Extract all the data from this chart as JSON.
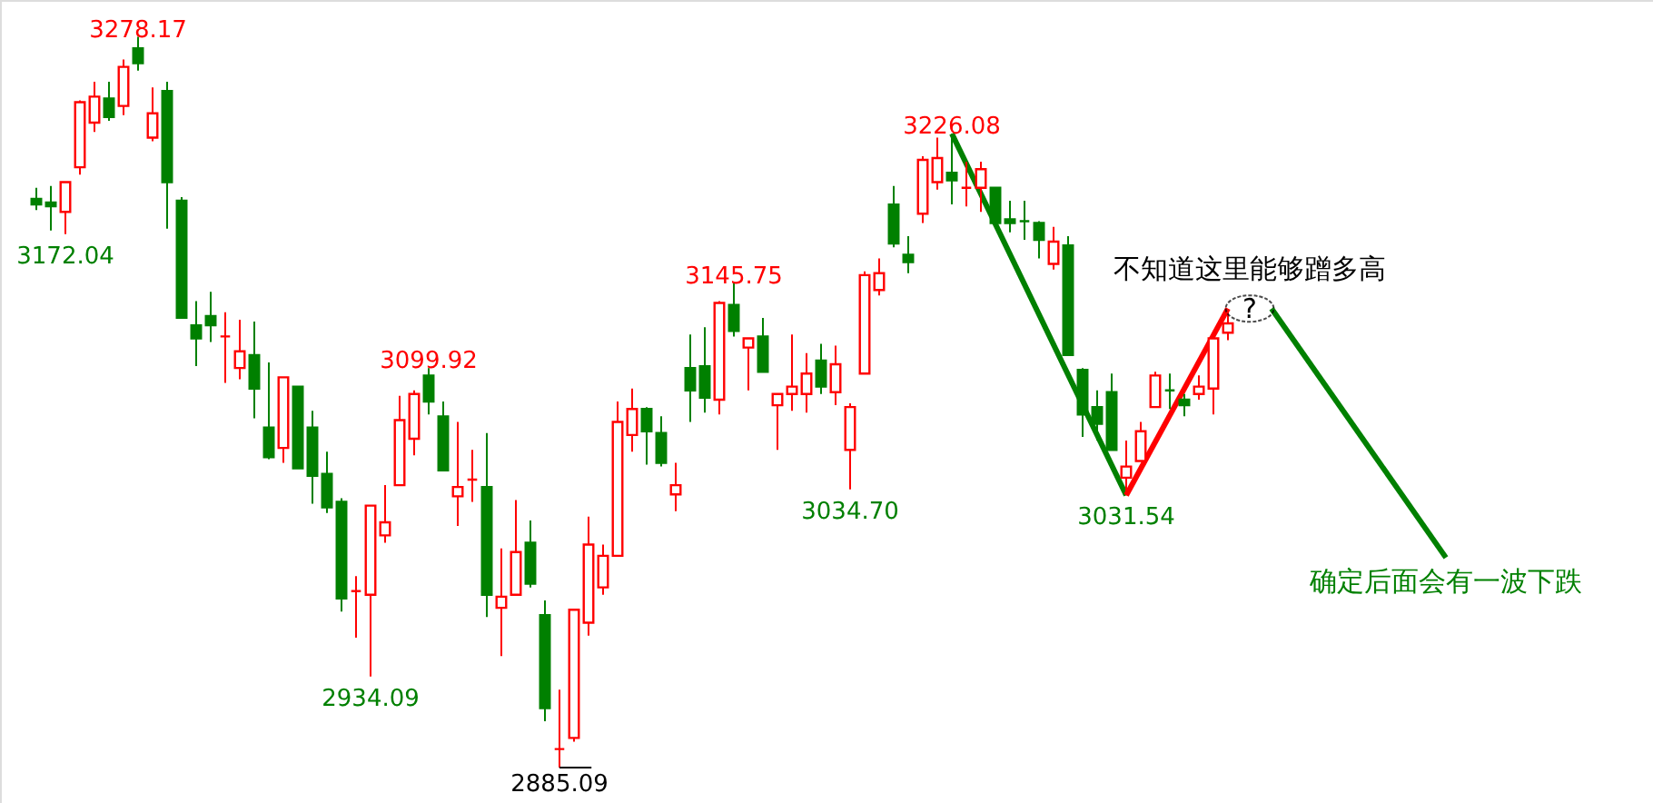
{
  "chart_data": {
    "type": "candlestick",
    "categories": [
      null,
      null,
      null,
      null,
      null,
      null,
      null,
      null,
      null,
      null,
      null,
      null,
      null,
      null,
      null,
      null,
      null,
      null,
      null,
      null,
      null,
      null,
      null,
      null,
      null,
      null,
      null,
      null,
      null,
      null,
      null,
      null,
      null,
      null,
      null,
      null,
      null,
      null,
      null,
      null,
      null,
      null,
      null,
      null,
      null,
      null,
      null,
      null,
      null,
      null,
      null,
      null,
      null,
      null,
      null,
      null,
      null,
      null,
      null,
      null,
      null,
      null,
      null,
      null,
      null,
      null,
      null,
      null,
      null,
      null,
      null,
      null,
      null,
      null,
      null,
      null,
      null,
      null,
      null,
      null,
      null,
      null,
      null,
      null,
      null,
      null,
      null,
      null,
      null,
      null,
      null,
      null,
      null,
      null,
      null,
      null,
      null,
      null
    ],
    "ohlc": [
      [
        3191,
        3197,
        3185,
        3188
      ],
      [
        3189,
        3198,
        3174,
        3187
      ],
      [
        3184,
        3200,
        3172.04,
        3200
      ],
      [
        3208,
        3244,
        3204,
        3243
      ],
      [
        3232,
        3254,
        3227,
        3246
      ],
      [
        3245,
        3254,
        3233,
        3235
      ],
      [
        3241,
        3266,
        3236,
        3262
      ],
      [
        3272,
        3278.17,
        3260,
        3264
      ],
      [
        3224,
        3251,
        3222,
        3237
      ],
      [
        3249,
        3254,
        3175,
        3200
      ],
      [
        3190,
        3192,
        3127,
        3127
      ],
      [
        3123,
        3136,
        3101,
        3116
      ],
      [
        3128,
        3141,
        3114,
        3123
      ],
      [
        3117,
        3130,
        3092,
        3117
      ],
      [
        3100,
        3126,
        3094,
        3109
      ],
      [
        3107,
        3125,
        3073,
        3089
      ],
      [
        3068,
        3103,
        3051,
        3052
      ],
      [
        3057,
        3095,
        3049,
        3095
      ],
      [
        3090,
        3090,
        3046,
        3046
      ],
      [
        3068,
        3077,
        3027,
        3042
      ],
      [
        3043,
        3055,
        3022,
        3025
      ],
      [
        3028,
        3030,
        2969,
        2976
      ],
      [
        2980,
        2988,
        2955,
        2980
      ],
      [
        2978,
        3026,
        2934.09,
        3026
      ],
      [
        3010,
        3037,
        3006,
        3017
      ],
      [
        3037,
        3085,
        3037,
        3072
      ],
      [
        3062,
        3088,
        3053,
        3086
      ],
      [
        3096,
        3099.92,
        3075,
        3082
      ],
      [
        3074,
        3082,
        3045,
        3045
      ],
      [
        3031,
        3071,
        3015,
        3036
      ],
      [
        3040,
        3056,
        3028,
        3040
      ],
      [
        3036,
        3065,
        2966,
        2978
      ],
      [
        2971,
        3003,
        2945,
        2977
      ],
      [
        2978,
        3029,
        2978,
        3001
      ],
      [
        3006,
        3018,
        2982,
        2984
      ],
      [
        2967,
        2975,
        2910,
        2917
      ],
      [
        2895,
        2927,
        2885.09,
        2895
      ],
      [
        2901,
        2970,
        2899,
        2970
      ],
      [
        2963,
        3020,
        2956,
        3005
      ],
      [
        2982,
        3005,
        2978,
        2999
      ],
      [
        2999,
        3082,
        2999,
        3071
      ],
      [
        3064,
        3089,
        3055,
        3078
      ],
      [
        3078,
        3079,
        3048,
        3066
      ],
      [
        3065,
        3074,
        3047,
        3049
      ],
      [
        3032,
        3049,
        3023,
        3037
      ],
      [
        3100,
        3118,
        3071,
        3088
      ],
      [
        3101,
        3122,
        3076,
        3084
      ],
      [
        3083,
        3136,
        3075,
        3135
      ],
      [
        3134,
        3145.75,
        3117,
        3120
      ],
      [
        3111,
        3116,
        3088,
        3116
      ],
      [
        3117,
        3127,
        3098,
        3098
      ],
      [
        3080,
        3086,
        3056,
        3086
      ],
      [
        3086,
        3118,
        3077,
        3090
      ],
      [
        3086,
        3108,
        3076,
        3097
      ],
      [
        3104,
        3113,
        3086,
        3090
      ],
      [
        3087,
        3112,
        3080,
        3102
      ],
      [
        3056,
        3081,
        3034.7,
        3079
      ],
      [
        3097,
        3152,
        3097,
        3150
      ],
      [
        3142,
        3159,
        3139,
        3151
      ],
      [
        3188,
        3198,
        3165,
        3167
      ],
      [
        3161,
        3171,
        3151,
        3157
      ],
      [
        3183,
        3214,
        3178,
        3212
      ],
      [
        3200,
        3224,
        3196,
        3213
      ],
      [
        3205,
        3226.08,
        3188,
        3201
      ],
      [
        3197,
        3211,
        3187,
        3197
      ],
      [
        3197,
        3211,
        3184,
        3207
      ],
      [
        3197,
        3197,
        3175,
        3178
      ],
      [
        3180,
        3190,
        3173,
        3178
      ],
      [
        3179,
        3190,
        3169,
        3179
      ],
      [
        3178,
        3179,
        3159,
        3169
      ],
      [
        3156,
        3176,
        3153,
        3168
      ],
      [
        3166,
        3171,
        3107,
        3107
      ],
      [
        3099,
        3100,
        3063,
        3075
      ],
      [
        3079,
        3088,
        3061,
        3070
      ],
      [
        3087,
        3097,
        3056,
        3056
      ],
      [
        3041,
        3061,
        3031.54,
        3047
      ],
      [
        3050,
        3071,
        3050,
        3066
      ],
      [
        3079,
        3098,
        3079,
        3096
      ],
      [
        3088,
        3097,
        3078,
        3088
      ],
      [
        3083,
        3086,
        3074,
        3080
      ],
      [
        3086,
        3096,
        3083,
        3090
      ],
      [
        3089,
        3120,
        3075,
        3116
      ],
      [
        3119,
        3130,
        3115,
        3124
      ],
      null,
      null,
      null,
      null,
      null,
      null,
      null,
      null,
      null,
      null,
      null,
      null,
      null,
      null,
      null
    ],
    "colors": [
      "#008000",
      "#008000",
      "#ff0000",
      "#ff0000",
      "#ff0000",
      "#008000",
      "#ff0000",
      "#008000",
      "#ff0000",
      "#008000",
      "#008000",
      "#008000",
      "#008000",
      "#ff0000",
      "#ff0000",
      "#008000",
      "#008000",
      "#ff0000",
      "#008000",
      "#008000",
      "#008000",
      "#008000",
      "#ff0000",
      "#ff0000",
      "#ff0000",
      "#ff0000",
      "#ff0000",
      "#008000",
      "#008000",
      "#ff0000",
      "#ff0000",
      "#008000",
      "#ff0000",
      "#ff0000",
      "#008000",
      "#008000",
      "#ff0000",
      "#ff0000",
      "#ff0000",
      "#ff0000",
      "#ff0000",
      "#ff0000",
      "#008000",
      "#008000",
      "#ff0000",
      "#008000",
      "#008000",
      "#ff0000",
      "#008000",
      "#ff0000",
      "#008000",
      "#ff0000",
      "#ff0000",
      "#ff0000",
      "#008000",
      "#ff0000",
      "#ff0000",
      "#ff0000",
      "#ff0000",
      "#008000",
      "#008000",
      "#ff0000",
      "#ff0000",
      "#008000",
      "#ff0000",
      "#ff0000",
      "#008000",
      "#008000",
      "#008000",
      "#008000",
      "#ff0000",
      "#008000",
      "#008000",
      "#008000",
      "#008000",
      "#ff0000",
      "#ff0000",
      "#ff0000",
      "#008000",
      "#008000",
      "#ff0000",
      "#ff0000",
      "#ff0000",
      null,
      null,
      null,
      null,
      null,
      null,
      null,
      null,
      null,
      null,
      null,
      null,
      null,
      null,
      null
    ],
    "series": [
      {
        "type": "line",
        "color": "#008000",
        "values": [
          null,
          null,
          null,
          null,
          null,
          null,
          null,
          null,
          null,
          null,
          null,
          null,
          null,
          null,
          null,
          null,
          null,
          null,
          null,
          null,
          null,
          null,
          null,
          null,
          null,
          null,
          null,
          null,
          null,
          null,
          null,
          null,
          null,
          null,
          null,
          null,
          null,
          null,
          null,
          null,
          null,
          null,
          null,
          null,
          null,
          null,
          null,
          null,
          null,
          null,
          null,
          null,
          null,
          null,
          null,
          null,
          null,
          null,
          null,
          null,
          null,
          null,
          null,
          3226.08,
          null,
          null,
          null,
          null,
          null,
          null,
          null,
          null,
          null,
          null,
          null,
          3031.54,
          null,
          null,
          null,
          null,
          null,
          null,
          null,
          null,
          null,
          null,
          null,
          null,
          null,
          null,
          null,
          null,
          null,
          null,
          null,
          null,
          null,
          null
        ]
      },
      {
        "type": "line",
        "color": "#ff0000",
        "values": [
          null,
          null,
          null,
          null,
          null,
          null,
          null,
          null,
          null,
          null,
          null,
          null,
          null,
          null,
          null,
          null,
          null,
          null,
          null,
          null,
          null,
          null,
          null,
          null,
          null,
          null,
          null,
          null,
          null,
          null,
          null,
          null,
          null,
          null,
          null,
          null,
          null,
          null,
          null,
          null,
          null,
          null,
          null,
          null,
          null,
          null,
          null,
          null,
          null,
          null,
          null,
          null,
          null,
          null,
          null,
          null,
          null,
          null,
          null,
          null,
          null,
          null,
          null,
          null,
          null,
          null,
          null,
          null,
          null,
          null,
          null,
          null,
          null,
          null,
          null,
          3031.54,
          null,
          null,
          null,
          null,
          null,
          null,
          3132,
          null,
          null,
          null,
          null,
          null,
          null,
          null,
          null,
          null,
          null,
          null,
          null,
          null,
          null,
          null
        ]
      },
      {
        "type": "line",
        "color": "#008000",
        "values": [
          null,
          null,
          null,
          null,
          null,
          null,
          null,
          null,
          null,
          null,
          null,
          null,
          null,
          null,
          null,
          null,
          null,
          null,
          null,
          null,
          null,
          null,
          null,
          null,
          null,
          null,
          null,
          null,
          null,
          null,
          null,
          null,
          null,
          null,
          null,
          null,
          null,
          null,
          null,
          null,
          null,
          null,
          null,
          null,
          null,
          null,
          null,
          null,
          null,
          null,
          null,
          null,
          null,
          null,
          null,
          null,
          null,
          null,
          null,
          null,
          null,
          null,
          null,
          null,
          null,
          null,
          null,
          null,
          null,
          null,
          null,
          null,
          null,
          null,
          null,
          null,
          null,
          null,
          null,
          null,
          null,
          null,
          null,
          null,
          null,
          3132,
          null,
          null,
          null,
          null,
          null,
          null,
          null,
          null,
          null,
          null,
          null,
          2998
        ]
      }
    ],
    "annotations": [
      {
        "text": "3278.17",
        "y": 3278.17
      },
      {
        "text": "3172.04",
        "y": 3172.04
      },
      {
        "text": "2934.09",
        "y": 2934.09
      },
      {
        "text": "3099.92",
        "y": 3099.92
      },
      {
        "text": "2885.09",
        "y": 2885.09
      },
      {
        "text": "3145.75",
        "y": 3145.75
      },
      {
        "text": "3034.70",
        "y": 3034.7
      },
      {
        "text": "3226.08",
        "y": 3226.08
      },
      {
        "text": "3031.54",
        "y": 3031.54
      },
      "?",
      "不知道这里能够蹭多高",
      "确定后面会有一波下跌"
    ],
    "ylim": [
      2866,
      3298
    ],
    "tick_labels": false
  }
}
